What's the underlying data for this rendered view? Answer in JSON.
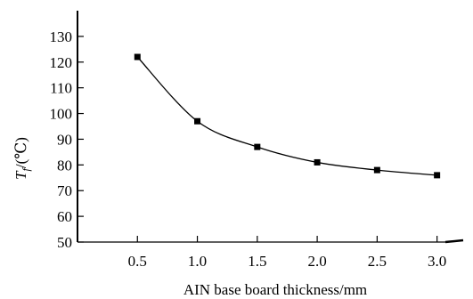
{
  "chart_data": {
    "type": "line",
    "title": "",
    "xlabel": "AIN base board thickness/mm",
    "ylabel_var": "T",
    "ylabel_sub": "f",
    "ylabel_unit": "/(℃)",
    "x_ticks": [
      "0.5",
      "1.0",
      "1.5",
      "2.0",
      "2.5",
      "3.0"
    ],
    "y_ticks": [
      "50",
      "60",
      "70",
      "80",
      "90",
      "100",
      "110",
      "120",
      "130"
    ],
    "xlim": [
      0,
      3.3
    ],
    "ylim": [
      50,
      140
    ],
    "grid": false,
    "marker": "square",
    "series": [
      {
        "x": [
          0.5,
          1.0,
          1.5,
          2.0,
          2.5,
          3.0
        ],
        "values": [
          122,
          97,
          87,
          81,
          78,
          76
        ]
      }
    ]
  }
}
